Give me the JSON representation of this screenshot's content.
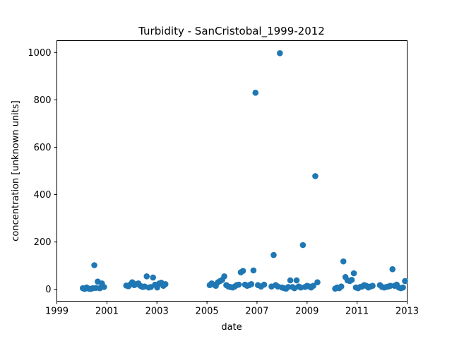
{
  "chart_data": {
    "type": "scatter",
    "title": "Turbidity - SanCristobal_1999-2012",
    "xlabel": "date",
    "ylabel": "concentration [unknown units]",
    "x_axis_type": "date",
    "xlim": [
      "1999-01-01",
      "2013-01-01"
    ],
    "ylim": [
      -50,
      1050
    ],
    "xticks": [
      "1999",
      "2001",
      "2003",
      "2005",
      "2007",
      "2009",
      "2011",
      "2013"
    ],
    "yticks": [
      0,
      200,
      400,
      600,
      800,
      1000
    ],
    "grid": false,
    "legend": "none",
    "marker_color": "#1f77b4",
    "series": [
      {
        "points": [
          [
            "2000-01-15",
            5
          ],
          [
            "2000-02-10",
            2
          ],
          [
            "2000-03-10",
            8
          ],
          [
            "2000-04-10",
            3
          ],
          [
            "2000-05-10",
            2
          ],
          [
            "2000-06-10",
            5
          ],
          [
            "2000-07-01",
            102
          ],
          [
            "2000-07-25",
            6
          ],
          [
            "2000-08-20",
            33
          ],
          [
            "2000-09-20",
            5
          ],
          [
            "2000-10-20",
            25
          ],
          [
            "2000-11-20",
            10
          ],
          [
            "2001-10-10",
            16
          ],
          [
            "2001-11-10",
            13
          ],
          [
            "2001-12-05",
            20
          ],
          [
            "2002-01-05",
            30
          ],
          [
            "2002-02-05",
            18
          ],
          [
            "2002-03-05",
            22
          ],
          [
            "2002-04-05",
            25
          ],
          [
            "2002-05-05",
            15
          ],
          [
            "2002-06-05",
            10
          ],
          [
            "2002-07-05",
            12
          ],
          [
            "2002-08-05",
            55
          ],
          [
            "2002-09-05",
            8
          ],
          [
            "2002-10-05",
            10
          ],
          [
            "2002-11-05",
            50
          ],
          [
            "2002-12-05",
            20
          ],
          [
            "2003-01-05",
            8
          ],
          [
            "2003-02-05",
            25
          ],
          [
            "2003-03-05",
            28
          ],
          [
            "2003-04-05",
            15
          ],
          [
            "2003-05-05",
            22
          ],
          [
            "2005-02-10",
            18
          ],
          [
            "2005-03-10",
            25
          ],
          [
            "2005-04-10",
            20
          ],
          [
            "2005-05-10",
            15
          ],
          [
            "2005-06-10",
            30
          ],
          [
            "2005-07-10",
            35
          ],
          [
            "2005-08-10",
            40
          ],
          [
            "2005-09-10",
            55
          ],
          [
            "2005-10-10",
            18
          ],
          [
            "2005-11-10",
            12
          ],
          [
            "2005-12-10",
            10
          ],
          [
            "2006-01-10",
            8
          ],
          [
            "2006-02-10",
            12
          ],
          [
            "2006-03-10",
            18
          ],
          [
            "2006-04-10",
            20
          ],
          [
            "2006-05-10",
            72
          ],
          [
            "2006-06-10",
            78
          ],
          [
            "2006-07-10",
            20
          ],
          [
            "2006-08-10",
            15
          ],
          [
            "2006-09-10",
            18
          ],
          [
            "2006-10-10",
            22
          ],
          [
            "2006-11-10",
            80
          ],
          [
            "2006-12-10",
            830
          ],
          [
            "2007-01-15",
            18
          ],
          [
            "2007-03-01",
            12
          ],
          [
            "2007-04-15",
            20
          ],
          [
            "2007-08-01",
            12
          ],
          [
            "2007-09-01",
            145
          ],
          [
            "2007-10-01",
            18
          ],
          [
            "2007-11-01",
            12
          ],
          [
            "2007-12-01",
            997
          ],
          [
            "2008-01-01",
            8
          ],
          [
            "2008-02-01",
            5
          ],
          [
            "2008-03-01",
            3
          ],
          [
            "2008-04-01",
            10
          ],
          [
            "2008-05-01",
            38
          ],
          [
            "2008-06-01",
            10
          ],
          [
            "2008-07-01",
            5
          ],
          [
            "2008-08-01",
            38
          ],
          [
            "2008-09-01",
            12
          ],
          [
            "2008-10-01",
            8
          ],
          [
            "2008-11-01",
            187
          ],
          [
            "2008-12-01",
            10
          ],
          [
            "2009-01-01",
            15
          ],
          [
            "2009-02-01",
            12
          ],
          [
            "2009-03-01",
            8
          ],
          [
            "2009-04-01",
            15
          ],
          [
            "2009-05-01",
            478
          ],
          [
            "2009-06-01",
            30
          ],
          [
            "2010-02-15",
            3
          ],
          [
            "2010-03-15",
            8
          ],
          [
            "2010-04-15",
            5
          ],
          [
            "2010-05-15",
            12
          ],
          [
            "2010-06-15",
            118
          ],
          [
            "2010-07-15",
            52
          ],
          [
            "2010-08-15",
            38
          ],
          [
            "2010-09-15",
            35
          ],
          [
            "2010-10-15",
            40
          ],
          [
            "2010-11-15",
            68
          ],
          [
            "2010-12-15",
            8
          ],
          [
            "2011-01-15",
            5
          ],
          [
            "2011-02-15",
            10
          ],
          [
            "2011-03-15",
            12
          ],
          [
            "2011-04-15",
            18
          ],
          [
            "2011-05-15",
            15
          ],
          [
            "2011-06-15",
            8
          ],
          [
            "2011-07-15",
            12
          ],
          [
            "2011-08-15",
            15
          ],
          [
            "2011-12-01",
            18
          ],
          [
            "2012-01-01",
            10
          ],
          [
            "2012-02-01",
            8
          ],
          [
            "2012-03-01",
            10
          ],
          [
            "2012-04-01",
            12
          ],
          [
            "2012-05-01",
            15
          ],
          [
            "2012-06-01",
            85
          ],
          [
            "2012-07-01",
            15
          ],
          [
            "2012-08-01",
            20
          ],
          [
            "2012-09-01",
            8
          ],
          [
            "2012-10-01",
            5
          ],
          [
            "2012-11-01",
            8
          ],
          [
            "2012-12-01",
            35
          ]
        ]
      }
    ]
  }
}
